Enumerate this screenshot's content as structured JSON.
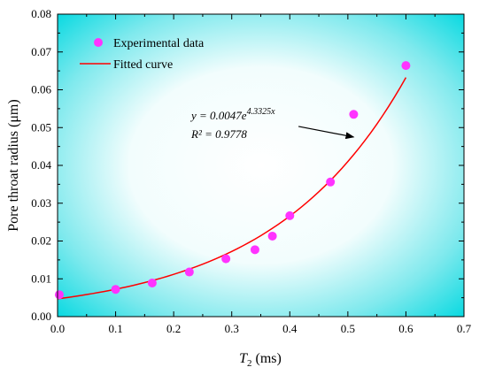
{
  "chart_data": {
    "type": "scatter",
    "xlabel_symbol": "T",
    "xlabel_sub": "2",
    "xlabel_unit": " (ms)",
    "ylabel": "Pore throat radius (μm)",
    "xlim": [
      0.0,
      0.7
    ],
    "ylim": [
      0.0,
      0.08
    ],
    "xticks": [
      "0.0",
      "0.1",
      "0.2",
      "0.3",
      "0.4",
      "0.5",
      "0.6",
      "0.7"
    ],
    "yticks": [
      "0.00",
      "0.01",
      "0.02",
      "0.03",
      "0.04",
      "0.05",
      "0.06",
      "0.07",
      "0.08"
    ],
    "legend_position": "top-left",
    "background": "white center with cyan corners gradient",
    "series": [
      {
        "name": "Experimental data",
        "kind": "scatter",
        "color": "#ff33ff",
        "x": [
          0.003,
          0.1,
          0.163,
          0.227,
          0.29,
          0.34,
          0.37,
          0.4,
          0.47,
          0.51,
          0.6
        ],
        "y": [
          0.0058,
          0.0072,
          0.0089,
          0.0118,
          0.0153,
          0.0177,
          0.0213,
          0.0267,
          0.0356,
          0.0535,
          0.0664
        ]
      },
      {
        "name": "Fitted curve",
        "kind": "line",
        "color": "#ff0000",
        "equation": {
          "a": 0.0047,
          "b": 4.3325,
          "x_start": 0.0,
          "x_end": 0.6
        }
      }
    ],
    "annotation": {
      "eq_prefix": "y = 0.0047e",
      "eq_exponent": "4.3325x",
      "r2": "R² = 0.9778",
      "arrow_from": [
        0.415,
        0.0503
      ],
      "arrow_to": [
        0.51,
        0.0475
      ]
    }
  }
}
